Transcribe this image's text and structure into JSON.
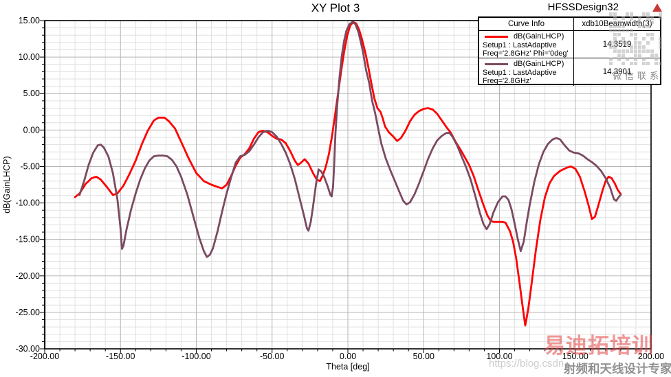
{
  "header": {
    "title": "XY Plot 3",
    "design_label": "HFSSDesign32"
  },
  "legend": {
    "header": {
      "col1": "Curve Info",
      "col2": "xdb10Beamwidth(3)"
    },
    "rows": [
      {
        "name": "dB(GainLHCP)",
        "line2": "Setup1 : LastAdaptive",
        "line3": "Freq='2.8GHz' Phi='0deg'",
        "value": "14.3519",
        "color": "#ff0000"
      },
      {
        "name": "dB(GainLHCP)",
        "line2": "Setup1 : LastAdaptive",
        "line3": "Freq='2.8GHz' Phi='90deg'",
        "value": "14.3901",
        "color": "#7b4a62"
      }
    ]
  },
  "watermarks": {
    "wechat": "微信联系",
    "url": "https://blog.csdn",
    "brand_red": "易迪拓培训",
    "brand_gray": "射频和天线设计专家"
  },
  "chart_data": {
    "type": "line",
    "title": "XY Plot 3",
    "xlabel": "Theta [deg]",
    "ylabel": "dB(GainLHCP)",
    "xlim": [
      -200,
      200
    ],
    "ylim": [
      -30,
      15
    ],
    "x_major": 50,
    "x_minor": 10,
    "y_major": 5,
    "y_minor": 1,
    "grid": true,
    "legend_position": "top-right",
    "tick_decimals": 2,
    "colors": {
      "axis": "#000000",
      "grid_major": "#b5b5b5",
      "grid_minor": "#e0e0e0"
    },
    "series": [
      {
        "name": "dB(GainLHCP) Setup1 : LastAdaptive Freq='2.8GHz' Phi='0deg'",
        "color": "#ff0000",
        "points": [
          [
            -180,
            -9.2
          ],
          [
            -177,
            -8.7
          ],
          [
            -173,
            -7.4
          ],
          [
            -169,
            -6.6
          ],
          [
            -166,
            -6.4
          ],
          [
            -163,
            -6.8
          ],
          [
            -159,
            -7.8
          ],
          [
            -155,
            -8.9
          ],
          [
            -152,
            -8.7
          ],
          [
            -148,
            -7.6
          ],
          [
            -144,
            -6.0
          ],
          [
            -140,
            -4.2
          ],
          [
            -136,
            -2.0
          ],
          [
            -132,
            -0.1
          ],
          [
            -128,
            1.3
          ],
          [
            -125,
            1.7
          ],
          [
            -121,
            1.7
          ],
          [
            -118,
            1.2
          ],
          [
            -114,
            0.2
          ],
          [
            -110,
            -1.6
          ],
          [
            -105,
            -3.9
          ],
          [
            -100,
            -5.9
          ],
          [
            -95,
            -7.0
          ],
          [
            -90,
            -7.5
          ],
          [
            -86,
            -7.8
          ],
          [
            -83,
            -8.0
          ],
          [
            -80,
            -7.5
          ],
          [
            -77,
            -6.3
          ],
          [
            -74,
            -4.9
          ],
          [
            -71,
            -3.8
          ],
          [
            -68,
            -3.3
          ],
          [
            -65,
            -2.5
          ],
          [
            -62,
            -1.2
          ],
          [
            -59,
            -0.3
          ],
          [
            -56,
            -0.1
          ],
          [
            -53,
            -0.3
          ],
          [
            -50,
            -0.8
          ],
          [
            -47,
            -1.2
          ],
          [
            -44,
            -1.3
          ],
          [
            -41,
            -1.8
          ],
          [
            -38,
            -2.9
          ],
          [
            -35,
            -4.2
          ],
          [
            -33,
            -4.8
          ],
          [
            -31,
            -4.5
          ],
          [
            -28.5,
            -4.0
          ],
          [
            -26,
            -4.6
          ],
          [
            -23,
            -5.9
          ],
          [
            -20.5,
            -6.8
          ],
          [
            -18.4,
            -7.0
          ],
          [
            -16.5,
            -6.2
          ],
          [
            -14.5,
            -5.0
          ],
          [
            -12.5,
            -3.3
          ],
          [
            -10.5,
            -0.9
          ],
          [
            -8.5,
            2.0
          ],
          [
            -6.5,
            5.0
          ],
          [
            -4.5,
            8.0
          ],
          [
            -2.5,
            10.7
          ],
          [
            -0.5,
            12.9
          ],
          [
            1.5,
            14.3
          ],
          [
            3.5,
            14.8
          ],
          [
            5.5,
            14.6
          ],
          [
            7.5,
            13.7
          ],
          [
            9.5,
            12.3
          ],
          [
            11.5,
            10.6
          ],
          [
            13.5,
            8.6
          ],
          [
            15.5,
            6.4
          ],
          [
            17.5,
            4.3
          ],
          [
            19.5,
            3.0
          ],
          [
            21.5,
            2.5
          ],
          [
            23,
            1.6
          ],
          [
            24.5,
            0.5
          ],
          [
            27,
            -0.3
          ],
          [
            30,
            -0.9
          ],
          [
            32.5,
            -1.5
          ],
          [
            35,
            -1.1
          ],
          [
            38,
            -0.1
          ],
          [
            41,
            1.2
          ],
          [
            44,
            2.1
          ],
          [
            47,
            2.6
          ],
          [
            50,
            2.9
          ],
          [
            53,
            3.0
          ],
          [
            56,
            2.8
          ],
          [
            59,
            2.2
          ],
          [
            62,
            1.3
          ],
          [
            65,
            0.4
          ],
          [
            68,
            -0.4
          ],
          [
            71,
            -1.6
          ],
          [
            74,
            -2.6
          ],
          [
            77,
            -3.7
          ],
          [
            80,
            -4.8
          ],
          [
            83,
            -6.3
          ],
          [
            86,
            -8.2
          ],
          [
            89,
            -10.0
          ],
          [
            92,
            -11.7
          ],
          [
            94,
            -12.4
          ],
          [
            96,
            -12.6
          ],
          [
            99,
            -12.6
          ],
          [
            102,
            -12.6
          ],
          [
            104,
            -12.7
          ],
          [
            107,
            -13.9
          ],
          [
            109,
            -15.3
          ],
          [
            111,
            -17.6
          ],
          [
            113,
            -20.6
          ],
          [
            115,
            -23.8
          ],
          [
            117,
            -26.8
          ],
          [
            119,
            -24.5
          ],
          [
            121,
            -21.4
          ],
          [
            124,
            -16.5
          ],
          [
            127,
            -12.3
          ],
          [
            130,
            -9.2
          ],
          [
            133,
            -7.3
          ],
          [
            136,
            -6.3
          ],
          [
            140,
            -5.6
          ],
          [
            144,
            -5.2
          ],
          [
            147,
            -5.0
          ],
          [
            150,
            -5.3
          ],
          [
            153,
            -6.4
          ],
          [
            156,
            -8.3
          ],
          [
            159,
            -10.5
          ],
          [
            161,
            -12.2
          ],
          [
            163,
            -11.9
          ],
          [
            165,
            -10.5
          ],
          [
            168,
            -8.3
          ],
          [
            170,
            -7.0
          ],
          [
            172,
            -6.4
          ],
          [
            174,
            -6.6
          ],
          [
            176,
            -7.3
          ],
          [
            178,
            -8.2
          ],
          [
            180,
            -8.8
          ]
        ]
      },
      {
        "name": "dB(GainLHCP) Setup1 : LastAdaptive Freq='2.8GHz' Phi='90deg'",
        "color": "#7b4a62",
        "points": [
          [
            -177,
            -8.9
          ],
          [
            -174,
            -7.0
          ],
          [
            -171,
            -4.8
          ],
          [
            -168,
            -3.1
          ],
          [
            -165,
            -2.1
          ],
          [
            -163,
            -2.0
          ],
          [
            -161,
            -2.4
          ],
          [
            -158,
            -3.6
          ],
          [
            -155,
            -5.9
          ],
          [
            -152,
            -9.5
          ],
          [
            -150,
            -13.5
          ],
          [
            -149,
            -16.3
          ],
          [
            -148,
            -15.8
          ],
          [
            -146,
            -13.6
          ],
          [
            -143,
            -10.9
          ],
          [
            -140,
            -8.7
          ],
          [
            -137,
            -6.8
          ],
          [
            -134,
            -5.3
          ],
          [
            -131,
            -4.2
          ],
          [
            -128,
            -3.6
          ],
          [
            -125,
            -3.5
          ],
          [
            -122,
            -3.5
          ],
          [
            -119,
            -3.6
          ],
          [
            -116,
            -4.1
          ],
          [
            -113,
            -5.0
          ],
          [
            -110,
            -6.4
          ],
          [
            -106,
            -8.8
          ],
          [
            -102,
            -11.8
          ],
          [
            -98,
            -14.8
          ],
          [
            -95,
            -16.6
          ],
          [
            -93,
            -17.4
          ],
          [
            -91,
            -17.1
          ],
          [
            -89,
            -16.2
          ],
          [
            -86,
            -13.9
          ],
          [
            -83,
            -11.2
          ],
          [
            -80,
            -8.7
          ],
          [
            -77,
            -6.5
          ],
          [
            -74,
            -4.5
          ],
          [
            -71,
            -3.6
          ],
          [
            -68,
            -3.4
          ],
          [
            -65,
            -2.9
          ],
          [
            -62,
            -2.0
          ],
          [
            -59,
            -1.0
          ],
          [
            -56,
            -0.3
          ],
          [
            -53,
            -0.1
          ],
          [
            -50,
            -0.3
          ],
          [
            -47,
            -0.9
          ],
          [
            -44,
            -1.9
          ],
          [
            -41,
            -3.1
          ],
          [
            -38,
            -4.7
          ],
          [
            -35,
            -6.7
          ],
          [
            -32,
            -9.2
          ],
          [
            -29,
            -11.7
          ],
          [
            -27,
            -13.5
          ],
          [
            -26,
            -13.8
          ],
          [
            -24.5,
            -12.6
          ],
          [
            -23,
            -10.5
          ],
          [
            -21,
            -7.4
          ],
          [
            -19.3,
            -5.4
          ],
          [
            -17.5,
            -5.7
          ],
          [
            -15.5,
            -6.5
          ],
          [
            -13.5,
            -7.6
          ],
          [
            -11.5,
            -8.9
          ],
          [
            -10.7,
            -9.1
          ],
          [
            -9.8,
            -7.8
          ],
          [
            -9,
            -4.5
          ],
          [
            -8.2,
            -0.5
          ],
          [
            -7,
            3.5
          ],
          [
            -5.5,
            7.3
          ],
          [
            -4,
            10.2
          ],
          [
            -2.5,
            12.2
          ],
          [
            -1,
            13.6
          ],
          [
            1,
            14.5
          ],
          [
            3,
            14.8
          ],
          [
            5,
            14.5
          ],
          [
            7,
            13.4
          ],
          [
            8.5,
            12.1
          ],
          [
            10,
            10.7
          ],
          [
            12,
            8.2
          ],
          [
            14,
            6.5
          ],
          [
            16,
            4.0
          ],
          [
            18,
            2.3
          ],
          [
            20,
            0.2
          ],
          [
            22,
            -1.8
          ],
          [
            25,
            -3.9
          ],
          [
            28,
            -5.5
          ],
          [
            31,
            -7.0
          ],
          [
            34,
            -8.5
          ],
          [
            36.5,
            -9.7
          ],
          [
            38.7,
            -10.2
          ],
          [
            41,
            -9.9
          ],
          [
            44,
            -8.8
          ],
          [
            47,
            -7.3
          ],
          [
            50,
            -5.6
          ],
          [
            53,
            -3.9
          ],
          [
            56,
            -2.5
          ],
          [
            59,
            -1.4
          ],
          [
            62,
            -0.8
          ],
          [
            65,
            -0.4
          ],
          [
            67,
            -0.4
          ],
          [
            69,
            -0.9
          ],
          [
            72,
            -2.1
          ],
          [
            75,
            -3.6
          ],
          [
            78,
            -5.1
          ],
          [
            81,
            -6.8
          ],
          [
            84,
            -9.0
          ],
          [
            87,
            -11.3
          ],
          [
            89.5,
            -12.9
          ],
          [
            91.5,
            -13.6
          ],
          [
            93.5,
            -12.9
          ],
          [
            96,
            -11.3
          ],
          [
            99,
            -9.9
          ],
          [
            102,
            -9.1
          ],
          [
            104,
            -9.1
          ],
          [
            106,
            -9.6
          ],
          [
            108,
            -10.9
          ],
          [
            110,
            -12.8
          ],
          [
            112,
            -14.9
          ],
          [
            114,
            -16.6
          ],
          [
            116,
            -15.3
          ],
          [
            118,
            -12.6
          ],
          [
            120,
            -10.2
          ],
          [
            123,
            -7.1
          ],
          [
            126,
            -4.7
          ],
          [
            129,
            -3.0
          ],
          [
            132,
            -1.9
          ],
          [
            135,
            -1.3
          ],
          [
            137.5,
            -1.1
          ],
          [
            140,
            -1.3
          ],
          [
            143,
            -2.1
          ],
          [
            146,
            -2.8
          ],
          [
            149,
            -3.1
          ],
          [
            152,
            -3.2
          ],
          [
            155,
            -3.5
          ],
          [
            158,
            -4.0
          ],
          [
            161,
            -4.4
          ],
          [
            164,
            -4.9
          ],
          [
            167,
            -5.6
          ],
          [
            170,
            -6.6
          ],
          [
            173,
            -7.9
          ],
          [
            175.5,
            -9.5
          ],
          [
            177,
            -9.7
          ],
          [
            179,
            -9.1
          ],
          [
            180,
            -8.9
          ]
        ]
      }
    ]
  }
}
